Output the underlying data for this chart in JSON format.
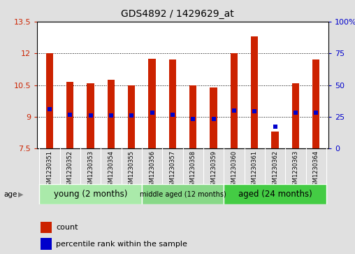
{
  "title": "GDS4892 / 1429629_at",
  "samples": [
    "GSM1230351",
    "GSM1230352",
    "GSM1230353",
    "GSM1230354",
    "GSM1230355",
    "GSM1230356",
    "GSM1230357",
    "GSM1230358",
    "GSM1230359",
    "GSM1230360",
    "GSM1230361",
    "GSM1230362",
    "GSM1230363",
    "GSM1230364"
  ],
  "counts": [
    12.0,
    10.65,
    10.6,
    10.75,
    10.5,
    11.75,
    11.7,
    10.5,
    10.4,
    12.0,
    12.8,
    8.3,
    10.6,
    11.7
  ],
  "percentiles": [
    9.35,
    9.1,
    9.05,
    9.05,
    9.05,
    9.2,
    9.1,
    8.9,
    8.9,
    9.3,
    9.25,
    8.55,
    9.2,
    9.2
  ],
  "ymin": 7.5,
  "ymax": 13.5,
  "yticks": [
    7.5,
    9.0,
    10.5,
    12.0,
    13.5
  ],
  "ytick_labels": [
    "7.5",
    "9",
    "10.5",
    "12",
    "13.5"
  ],
  "right_yticks": [
    0,
    25,
    50,
    75,
    100
  ],
  "groups": [
    {
      "label": "young (2 months)",
      "start": 0,
      "end": 4,
      "color": "#aaeaaa"
    },
    {
      "label": "middle aged (12 months)",
      "start": 5,
      "end": 8,
      "color": "#88d888"
    },
    {
      "label": "aged (24 months)",
      "start": 9,
      "end": 13,
      "color": "#44cc44"
    }
  ],
  "bar_color": "#CC2200",
  "percentile_color": "#0000CC",
  "bar_width": 0.35,
  "grid_color": "black",
  "grid_linestyle": ":",
  "plot_bg_color": "#ffffff",
  "fig_bg_color": "#e0e0e0",
  "sample_box_color": "#c8c8c8",
  "age_label": "age",
  "legend_count_label": "count",
  "legend_percentile_label": "percentile rank within the sample"
}
